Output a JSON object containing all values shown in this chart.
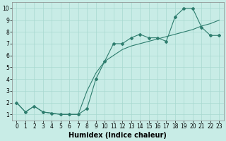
{
  "xlabel": "Humidex (Indice chaleur)",
  "ylabel": "",
  "bg_color": "#c8ece6",
  "grid_color": "#a8d8d0",
  "line_color": "#2e7d6e",
  "xlim": [
    -0.5,
    23.5
  ],
  "ylim": [
    0.5,
    10.5
  ],
  "xticks": [
    0,
    1,
    2,
    3,
    4,
    5,
    6,
    7,
    8,
    9,
    10,
    11,
    12,
    13,
    14,
    15,
    16,
    17,
    18,
    19,
    20,
    21,
    22,
    23
  ],
  "yticks": [
    1,
    2,
    3,
    4,
    5,
    6,
    7,
    8,
    9,
    10
  ],
  "line1_x": [
    0,
    1,
    2,
    3,
    4,
    5,
    6,
    7,
    8,
    9,
    10,
    11,
    12,
    13,
    14,
    15,
    16,
    17,
    18,
    19,
    20,
    21,
    22,
    23
  ],
  "line1_y": [
    2,
    1.2,
    1.7,
    1.2,
    1.1,
    1,
    1,
    1,
    1.5,
    4,
    5.5,
    7,
    7,
    7.5,
    7.8,
    7.5,
    7.5,
    7.2,
    9.3,
    10,
    10,
    8.4,
    7.7,
    7.7
  ],
  "line2_x": [
    0,
    1,
    2,
    3,
    4,
    5,
    6,
    7,
    8,
    9,
    10,
    11,
    12,
    13,
    14,
    15,
    16,
    17,
    18,
    19,
    20,
    21,
    22,
    23
  ],
  "line2_y": [
    2,
    1.2,
    1.7,
    1.2,
    1.1,
    1.0,
    1.0,
    1.0,
    3.0,
    4.5,
    5.5,
    6.0,
    6.5,
    6.8,
    7.0,
    7.2,
    7.4,
    7.6,
    7.8,
    8.0,
    8.2,
    8.5,
    8.7,
    9.0
  ],
  "figsize": [
    3.2,
    2.0
  ],
  "dpi": 100,
  "xlabel_fontsize": 7,
  "tick_fontsize": 5.5,
  "marker": "D",
  "markersize": 2.0,
  "linewidth": 0.8
}
